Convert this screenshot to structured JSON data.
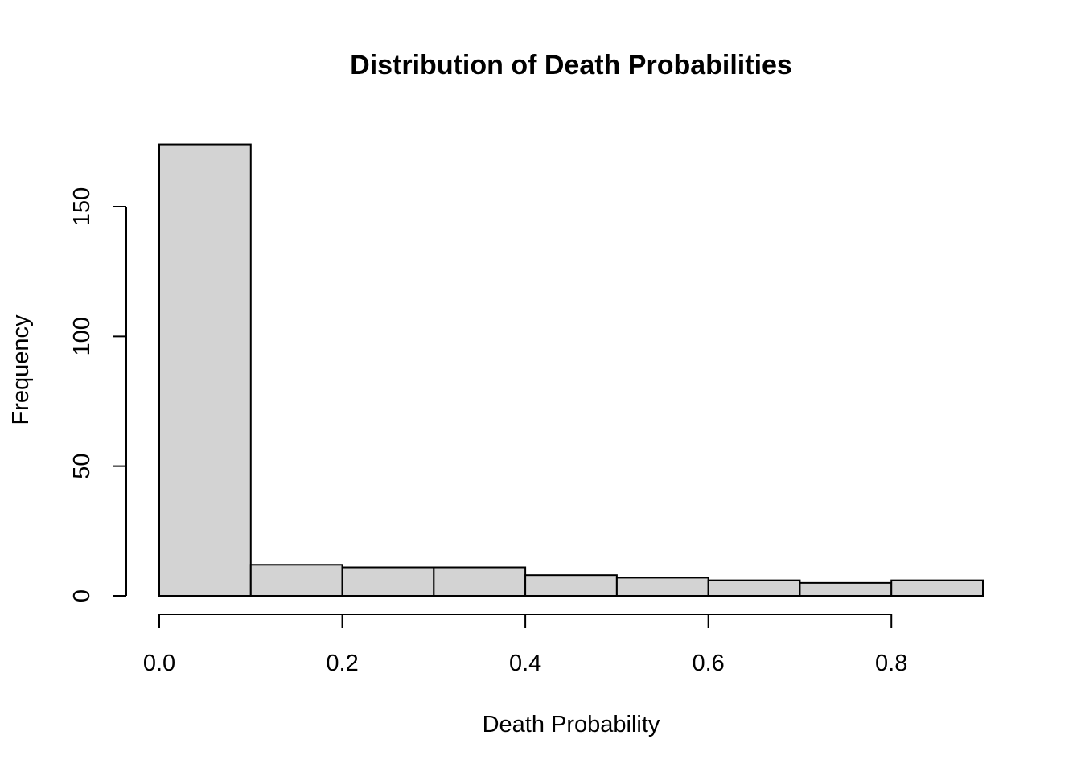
{
  "chart_data": {
    "type": "bar",
    "title": "Distribution of Death Probabilities",
    "xlabel": "Death Probability",
    "ylabel": "Frequency",
    "bins": [
      {
        "start": 0.0,
        "end": 0.1,
        "value": 174
      },
      {
        "start": 0.1,
        "end": 0.2,
        "value": 12
      },
      {
        "start": 0.2,
        "end": 0.3,
        "value": 11
      },
      {
        "start": 0.3,
        "end": 0.4,
        "value": 11
      },
      {
        "start": 0.4,
        "end": 0.5,
        "value": 8
      },
      {
        "start": 0.5,
        "end": 0.6,
        "value": 7
      },
      {
        "start": 0.6,
        "end": 0.7,
        "value": 6
      },
      {
        "start": 0.7,
        "end": 0.8,
        "value": 5
      },
      {
        "start": 0.8,
        "end": 0.9,
        "value": 6
      }
    ],
    "xticks": [
      0.0,
      0.2,
      0.4,
      0.6,
      0.8
    ],
    "xtick_labels": [
      "0.0",
      "0.2",
      "0.4",
      "0.6",
      "0.8"
    ],
    "yticks": [
      0,
      50,
      100,
      150
    ],
    "ytick_labels": [
      "0",
      "50",
      "100",
      "150"
    ],
    "xlim": [
      0.0,
      0.9
    ],
    "grid": false,
    "bar_fill": "#d3d3d3",
    "bar_stroke": "#000000"
  }
}
